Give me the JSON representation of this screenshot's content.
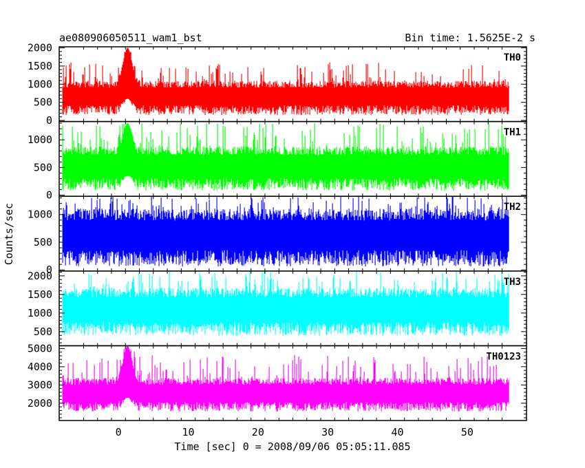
{
  "header": {
    "left_title": "ae080906050511_wam1_bst",
    "right_title": "Bin time: 1.5625E-2 s"
  },
  "chart_data": {
    "type": "line",
    "xlabel": "Time [sec] 0 = 2008/09/06 05:05:11.085",
    "ylabel": "Counts/sec",
    "xlim": [
      -8.5,
      58.5
    ],
    "x_ticks": [
      0,
      10,
      20,
      30,
      40,
      50
    ],
    "x_range_of_data": [
      -8,
      56
    ],
    "panels": [
      {
        "name": "TH0",
        "color": "#ff0000",
        "ylim": [
          -30,
          2030
        ],
        "y_ticks": [
          0,
          500,
          1000,
          1500,
          2000
        ],
        "baseline_range": [
          230,
          1000
        ],
        "spike_max": 1600,
        "burst": {
          "peak_time": 1.3,
          "upper": 2000,
          "lower": 600
        }
      },
      {
        "name": "TH1",
        "color": "#00ff00",
        "ylim": [
          -20,
          1330
        ],
        "y_ticks": [
          0,
          500,
          1000
        ],
        "baseline_range": [
          150,
          800
        ],
        "spike_max": 1300,
        "burst": {
          "peak_time": 1.3,
          "upper": 1300,
          "lower": 350
        }
      },
      {
        "name": "TH2",
        "color": "#0000ff",
        "ylim": [
          -20,
          1330
        ],
        "y_ticks": [
          0,
          500,
          1000
        ],
        "baseline_range": [
          150,
          1000
        ],
        "spike_max": 1330,
        "burst": null
      },
      {
        "name": "TH3",
        "color": "#00ffff",
        "ylim": [
          120,
          2130
        ],
        "y_ticks": [
          500,
          1000,
          1500,
          2000
        ],
        "baseline_range": [
          500,
          1550
        ],
        "spike_max": 2130,
        "burst": null
      },
      {
        "name": "TH0123",
        "color": "#ff00ff",
        "ylim": [
          1050,
          5150
        ],
        "y_ticks": [
          2000,
          3000,
          4000,
          5000
        ],
        "baseline_range": [
          1700,
          3200
        ],
        "spike_max": 4700,
        "burst": {
          "peak_time": 1.3,
          "upper": 5150,
          "lower": 2300
        }
      }
    ]
  }
}
